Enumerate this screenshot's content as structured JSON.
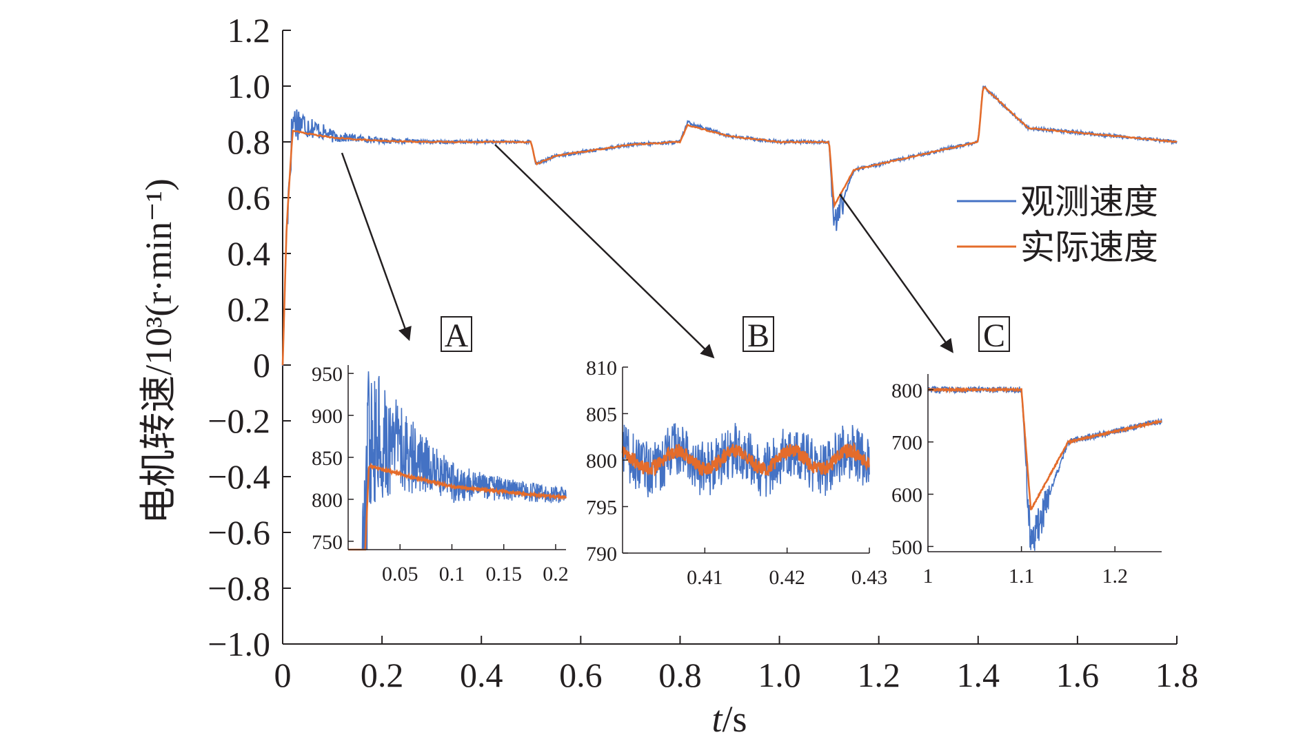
{
  "chart_data": {
    "type": "line",
    "xlabel": "t/s",
    "xlabel_italic_part": "t",
    "xlabel_rest": "/s",
    "ylabel": "电机转速/10³(r·min⁻¹)",
    "xlim": [
      0,
      1.8
    ],
    "ylim": [
      -1.0,
      1.2
    ],
    "x_ticks": [
      "0",
      "0.2",
      "0.4",
      "0.6",
      "0.8",
      "1.0",
      "1.2",
      "1.4",
      "1.6",
      "1.8"
    ],
    "y_ticks": [
      "1.2",
      "1.0",
      "0.8",
      "0.6",
      "0.4",
      "0.2",
      "0",
      "−0.2",
      "−0.4",
      "−0.6",
      "−0.8",
      "−1.0"
    ],
    "legend": {
      "position": "right",
      "entries": [
        "观测速度",
        "实际速度"
      ]
    },
    "series": [
      {
        "name": "观测速度",
        "color": "#4472c4",
        "key_points": [
          [
            0,
            0
          ],
          [
            0.008,
            0.5
          ],
          [
            0.02,
            0.88
          ],
          [
            0.05,
            0.86
          ],
          [
            0.1,
            0.82
          ],
          [
            0.2,
            0.805
          ],
          [
            0.3,
            0.8
          ],
          [
            0.5,
            0.8
          ],
          [
            0.51,
            0.72
          ],
          [
            0.55,
            0.75
          ],
          [
            0.7,
            0.79
          ],
          [
            0.8,
            0.8
          ],
          [
            0.815,
            0.87
          ],
          [
            0.9,
            0.82
          ],
          [
            1.0,
            0.8
          ],
          [
            1.1,
            0.8
          ],
          [
            1.11,
            0.5
          ],
          [
            1.15,
            0.7
          ],
          [
            1.4,
            0.8
          ],
          [
            1.41,
            1.0
          ],
          [
            1.5,
            0.85
          ],
          [
            1.8,
            0.8
          ]
        ]
      },
      {
        "name": "实际速度",
        "color": "#e46c2b",
        "key_points": [
          [
            0,
            0
          ],
          [
            0.008,
            0.5
          ],
          [
            0.02,
            0.84
          ],
          [
            0.05,
            0.83
          ],
          [
            0.1,
            0.815
          ],
          [
            0.2,
            0.803
          ],
          [
            0.3,
            0.8
          ],
          [
            0.5,
            0.8
          ],
          [
            0.51,
            0.72
          ],
          [
            0.55,
            0.75
          ],
          [
            0.7,
            0.79
          ],
          [
            0.8,
            0.8
          ],
          [
            0.815,
            0.86
          ],
          [
            0.9,
            0.82
          ],
          [
            1.0,
            0.8
          ],
          [
            1.1,
            0.8
          ],
          [
            1.11,
            0.57
          ],
          [
            1.15,
            0.7
          ],
          [
            1.4,
            0.8
          ],
          [
            1.41,
            1.0
          ],
          [
            1.5,
            0.85
          ],
          [
            1.8,
            0.8
          ]
        ]
      }
    ],
    "insets": [
      {
        "label": "A",
        "xlim": [
          0,
          0.21
        ],
        "ylim": [
          740,
          960
        ],
        "x_ticks": [
          "0.05",
          "0.1",
          "0.15",
          "0.2"
        ],
        "y_ticks": [
          "950",
          "900",
          "850",
          "800",
          "750"
        ]
      },
      {
        "label": "B",
        "xlim": [
          0.4,
          0.43
        ],
        "ylim": [
          790,
          810
        ],
        "x_ticks": [
          "0.41",
          "0.42",
          "0.43"
        ],
        "y_ticks": [
          "810",
          "805",
          "800",
          "795",
          "790"
        ]
      },
      {
        "label": "C",
        "xlim": [
          1.0,
          1.25
        ],
        "ylim": [
          490,
          830
        ],
        "x_ticks": [
          "1",
          "1.1",
          "1.2"
        ],
        "y_ticks": [
          "800",
          "700",
          "600",
          "500"
        ]
      }
    ]
  }
}
